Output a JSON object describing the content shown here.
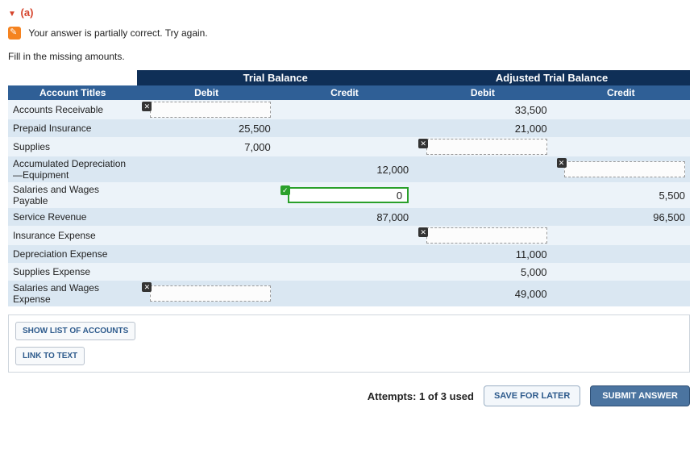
{
  "part_label": "(a)",
  "feedback_text": "Your answer is partially correct.  Try again.",
  "instruction": "Fill in the missing amounts.",
  "table": {
    "group_headers": [
      "Trial Balance",
      "Adjusted Trial Balance"
    ],
    "col_headers": [
      "Account Titles",
      "Debit",
      "Credit",
      "Debit",
      "Credit"
    ],
    "rows": [
      {
        "title": "Accounts Receivable",
        "stripe": "a",
        "cells": [
          {
            "type": "input",
            "value": "",
            "mark": "x"
          },
          {
            "type": "blank"
          },
          {
            "type": "text",
            "value": "33,500"
          },
          {
            "type": "blank"
          }
        ]
      },
      {
        "title": "Prepaid Insurance",
        "stripe": "b",
        "cells": [
          {
            "type": "text",
            "value": "25,500"
          },
          {
            "type": "blank"
          },
          {
            "type": "text",
            "value": "21,000"
          },
          {
            "type": "blank"
          }
        ]
      },
      {
        "title": "Supplies",
        "stripe": "a",
        "cells": [
          {
            "type": "text",
            "value": "7,000"
          },
          {
            "type": "blank"
          },
          {
            "type": "input",
            "value": "",
            "mark": "x"
          },
          {
            "type": "blank"
          }
        ]
      },
      {
        "title": "Accumulated Depreciation—Equipment",
        "stripe": "b",
        "cells": [
          {
            "type": "blank"
          },
          {
            "type": "text",
            "value": "12,000"
          },
          {
            "type": "blank"
          },
          {
            "type": "input",
            "value": "",
            "mark": "x"
          }
        ]
      },
      {
        "title": "Salaries and Wages Payable",
        "stripe": "a",
        "cells": [
          {
            "type": "blank"
          },
          {
            "type": "input",
            "value": "0",
            "mark": "v",
            "correct": true
          },
          {
            "type": "blank"
          },
          {
            "type": "text",
            "value": "5,500"
          }
        ]
      },
      {
        "title": "Service Revenue",
        "stripe": "b",
        "cells": [
          {
            "type": "blank"
          },
          {
            "type": "text",
            "value": "87,000"
          },
          {
            "type": "blank"
          },
          {
            "type": "text",
            "value": "96,500"
          }
        ]
      },
      {
        "title": "Insurance Expense",
        "stripe": "a",
        "cells": [
          {
            "type": "blank"
          },
          {
            "type": "blank"
          },
          {
            "type": "input",
            "value": "",
            "mark": "x"
          },
          {
            "type": "blank"
          }
        ]
      },
      {
        "title": "Depreciation Expense",
        "stripe": "b",
        "cells": [
          {
            "type": "blank"
          },
          {
            "type": "blank"
          },
          {
            "type": "text",
            "value": "11,000"
          },
          {
            "type": "blank"
          }
        ]
      },
      {
        "title": "Supplies Expense",
        "stripe": "a",
        "cells": [
          {
            "type": "blank"
          },
          {
            "type": "blank"
          },
          {
            "type": "text",
            "value": "5,000"
          },
          {
            "type": "blank"
          }
        ]
      },
      {
        "title": "Salaries and Wages Expense",
        "stripe": "b",
        "cells": [
          {
            "type": "input",
            "value": "",
            "mark": "x"
          },
          {
            "type": "blank"
          },
          {
            "type": "text",
            "value": "49,000"
          },
          {
            "type": "blank"
          }
        ]
      }
    ]
  },
  "buttons": {
    "show_accounts": "SHOW LIST OF ACCOUNTS",
    "link_text": "LINK TO TEXT",
    "save": "SAVE FOR LATER",
    "submit": "SUBMIT ANSWER"
  },
  "attempts_text": "Attempts: 1 of 3 used",
  "colors": {
    "header_dark": "#0f2f57",
    "header_mid": "#2f5f96",
    "stripe_a": "#ecf3f9",
    "stripe_b": "#dae7f2",
    "part_color": "#d6452d"
  }
}
